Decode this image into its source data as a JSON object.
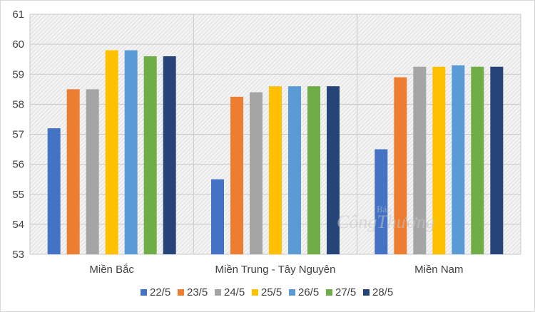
{
  "chart_data": {
    "type": "bar",
    "title": "",
    "xlabel": "",
    "ylabel": "",
    "ylim": [
      53,
      61
    ],
    "yticks": [
      53,
      54,
      55,
      56,
      57,
      58,
      59,
      60,
      61
    ],
    "grid": true,
    "legend_position": "bottom",
    "categories": [
      "Miền Bắc",
      "Miền Trung - Tây Nguyên",
      "Miền Nam"
    ],
    "series": [
      {
        "name": "22/5",
        "color": "#4472c4",
        "values": [
          57.2,
          55.5,
          56.5
        ]
      },
      {
        "name": "23/5",
        "color": "#ed7d31",
        "values": [
          58.5,
          58.25,
          58.9
        ]
      },
      {
        "name": "24/5",
        "color": "#a5a5a5",
        "values": [
          58.5,
          58.4,
          59.25
        ]
      },
      {
        "name": "25/5",
        "color": "#ffc000",
        "values": [
          59.8,
          58.6,
          59.25
        ]
      },
      {
        "name": "26/5",
        "color": "#5b9bd5",
        "values": [
          59.8,
          58.6,
          59.3
        ]
      },
      {
        "name": "27/5",
        "color": "#70ad47",
        "values": [
          59.6,
          58.6,
          59.25
        ]
      },
      {
        "name": "28/5",
        "color": "#264478",
        "values": [
          59.6,
          58.6,
          59.25
        ]
      }
    ]
  },
  "watermark": {
    "line1": "Báo",
    "line2": "CôngThương"
  }
}
